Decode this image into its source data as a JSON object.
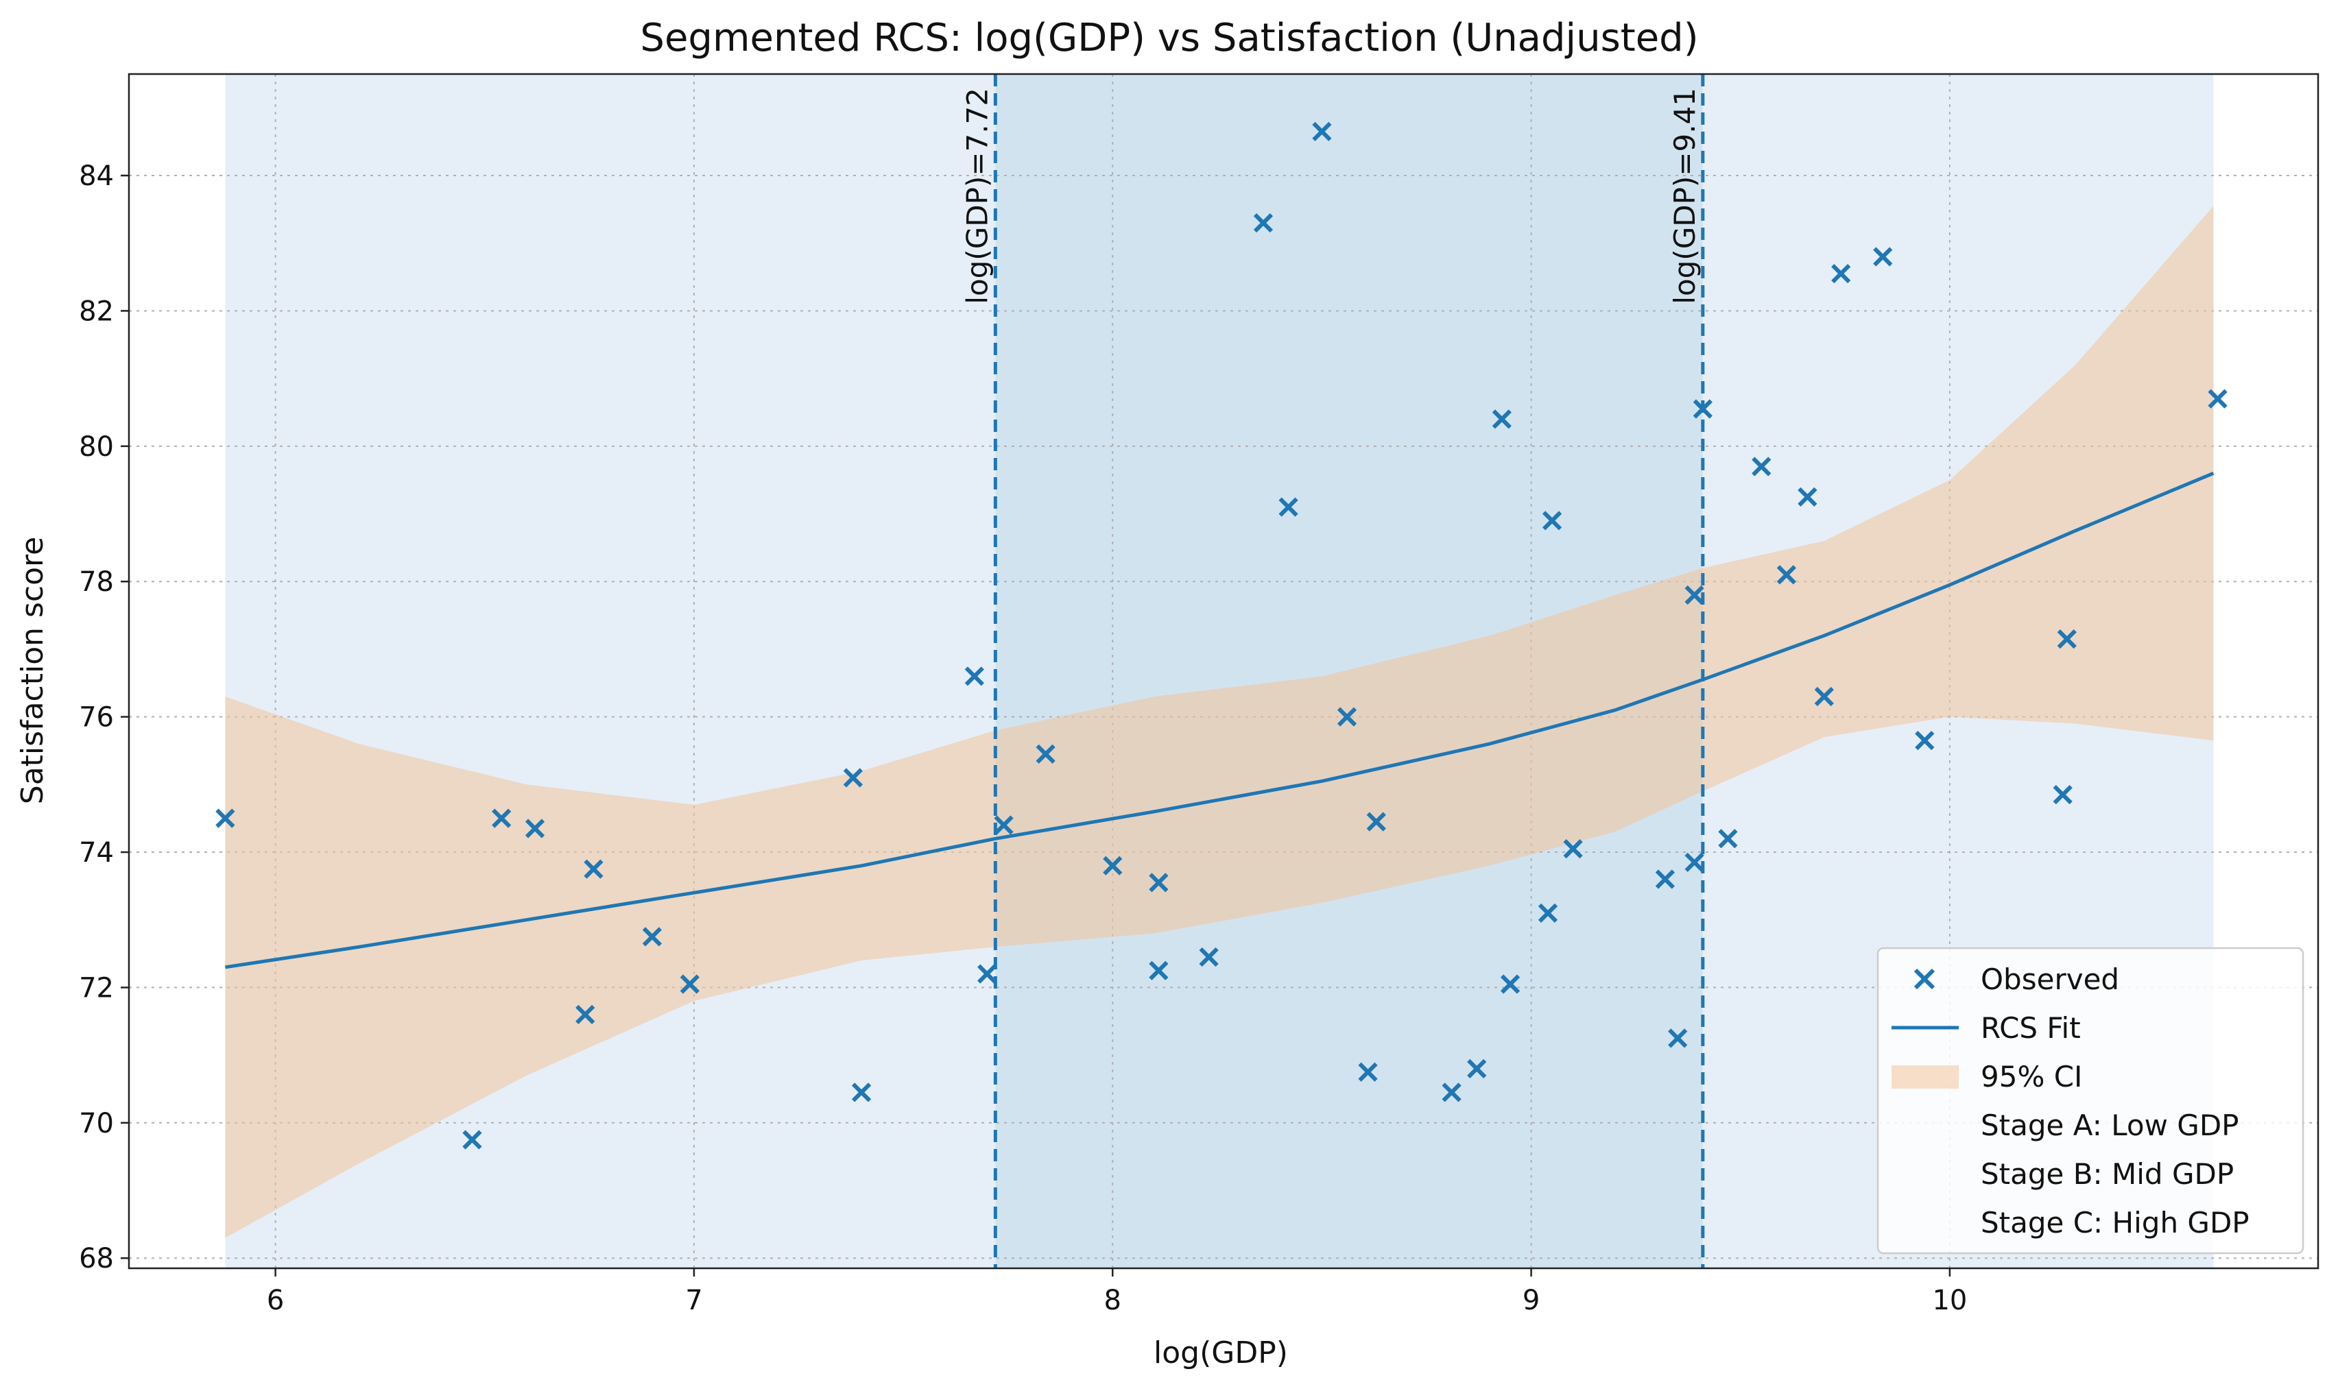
{
  "chart_data": {
    "type": "scatter",
    "title": "Segmented RCS: log(GDP) vs Satisfaction (Unadjusted)",
    "xlabel": "log(GDP)",
    "ylabel": "Satisfaction score",
    "xlim": [
      5.65,
      10.88
    ],
    "ylim": [
      67.85,
      85.5
    ],
    "x_ticks": [
      6,
      7,
      8,
      9,
      10
    ],
    "y_ticks": [
      68,
      70,
      72,
      74,
      76,
      78,
      80,
      82,
      84
    ],
    "grid": true,
    "legend_position": "lower-right",
    "colors": {
      "primary": "#1f77b4",
      "ci_fill": "#f2c49b",
      "stage_a": "#e6eff8",
      "stage_b": "#d2e3f0",
      "stage_c": "#e6eff8",
      "legend_border": "#cccccc"
    },
    "stages": [
      {
        "name": "Stage A: Low GDP",
        "x_range": [
          5.88,
          7.72
        ]
      },
      {
        "name": "Stage B: Mid GDP",
        "x_range": [
          7.72,
          9.41
        ]
      },
      {
        "name": "Stage C: High GDP",
        "x_range": [
          9.41,
          10.63
        ]
      }
    ],
    "cutpoints": [
      {
        "x": 7.72,
        "label": "log(GDP)=7.72"
      },
      {
        "x": 9.41,
        "label": "log(GDP)=9.41"
      }
    ],
    "series": [
      {
        "name": "Observed",
        "kind": "scatter",
        "points": [
          [
            5.88,
            74.5
          ],
          [
            6.47,
            69.75
          ],
          [
            6.54,
            74.5
          ],
          [
            6.62,
            74.35
          ],
          [
            6.74,
            71.6
          ],
          [
            6.76,
            73.75
          ],
          [
            6.9,
            72.75
          ],
          [
            6.99,
            72.05
          ],
          [
            7.38,
            75.1
          ],
          [
            7.4,
            70.45
          ],
          [
            7.67,
            76.6
          ],
          [
            7.7,
            72.2
          ],
          [
            7.74,
            74.4
          ],
          [
            7.84,
            75.45
          ],
          [
            8.0,
            73.8
          ],
          [
            8.11,
            73.55
          ],
          [
            8.11,
            72.25
          ],
          [
            8.23,
            72.45
          ],
          [
            8.36,
            83.3
          ],
          [
            8.42,
            79.1
          ],
          [
            8.5,
            84.65
          ],
          [
            8.56,
            76.0
          ],
          [
            8.61,
            70.75
          ],
          [
            8.63,
            74.45
          ],
          [
            8.81,
            70.45
          ],
          [
            8.87,
            70.8
          ],
          [
            8.93,
            80.4
          ],
          [
            8.95,
            72.05
          ],
          [
            9.04,
            73.1
          ],
          [
            9.05,
            78.9
          ],
          [
            9.1,
            74.05
          ],
          [
            9.32,
            73.6
          ],
          [
            9.35,
            71.25
          ],
          [
            9.39,
            77.8
          ],
          [
            9.39,
            73.85
          ],
          [
            9.41,
            80.55
          ],
          [
            9.47,
            74.2
          ],
          [
            9.55,
            79.7
          ],
          [
            9.61,
            78.1
          ],
          [
            9.66,
            79.25
          ],
          [
            9.7,
            76.3
          ],
          [
            9.74,
            82.55
          ],
          [
            9.84,
            82.8
          ],
          [
            9.94,
            75.65
          ],
          [
            10.27,
            74.85
          ],
          [
            10.28,
            77.15
          ],
          [
            10.64,
            80.7
          ]
        ]
      },
      {
        "name": "RCS Fit",
        "kind": "line",
        "x": [
          5.88,
          6.2,
          6.6,
          7.0,
          7.4,
          7.72,
          8.1,
          8.5,
          8.9,
          9.2,
          9.41,
          9.7,
          10.0,
          10.3,
          10.63
        ],
        "y": [
          72.3,
          72.6,
          73.0,
          73.4,
          73.8,
          74.2,
          74.6,
          75.05,
          75.6,
          76.1,
          76.55,
          77.2,
          77.95,
          78.75,
          79.6
        ]
      },
      {
        "name": "95% CI",
        "kind": "band",
        "x": [
          5.88,
          6.2,
          6.6,
          7.0,
          7.4,
          7.72,
          8.1,
          8.5,
          8.9,
          9.2,
          9.41,
          9.7,
          10.0,
          10.3,
          10.63
        ],
        "lower": [
          68.3,
          69.4,
          70.7,
          71.8,
          72.4,
          72.6,
          72.8,
          73.25,
          73.8,
          74.3,
          74.9,
          75.7,
          76.0,
          75.9,
          75.65
        ],
        "upper": [
          76.3,
          75.6,
          75.0,
          74.7,
          75.2,
          75.8,
          76.3,
          76.6,
          77.2,
          77.8,
          78.2,
          78.6,
          79.5,
          81.2,
          83.55
        ]
      }
    ],
    "legend": [
      "Observed",
      "RCS Fit",
      "95% CI",
      "Stage A: Low GDP",
      "Stage B: Mid GDP",
      "Stage C: High GDP"
    ]
  }
}
